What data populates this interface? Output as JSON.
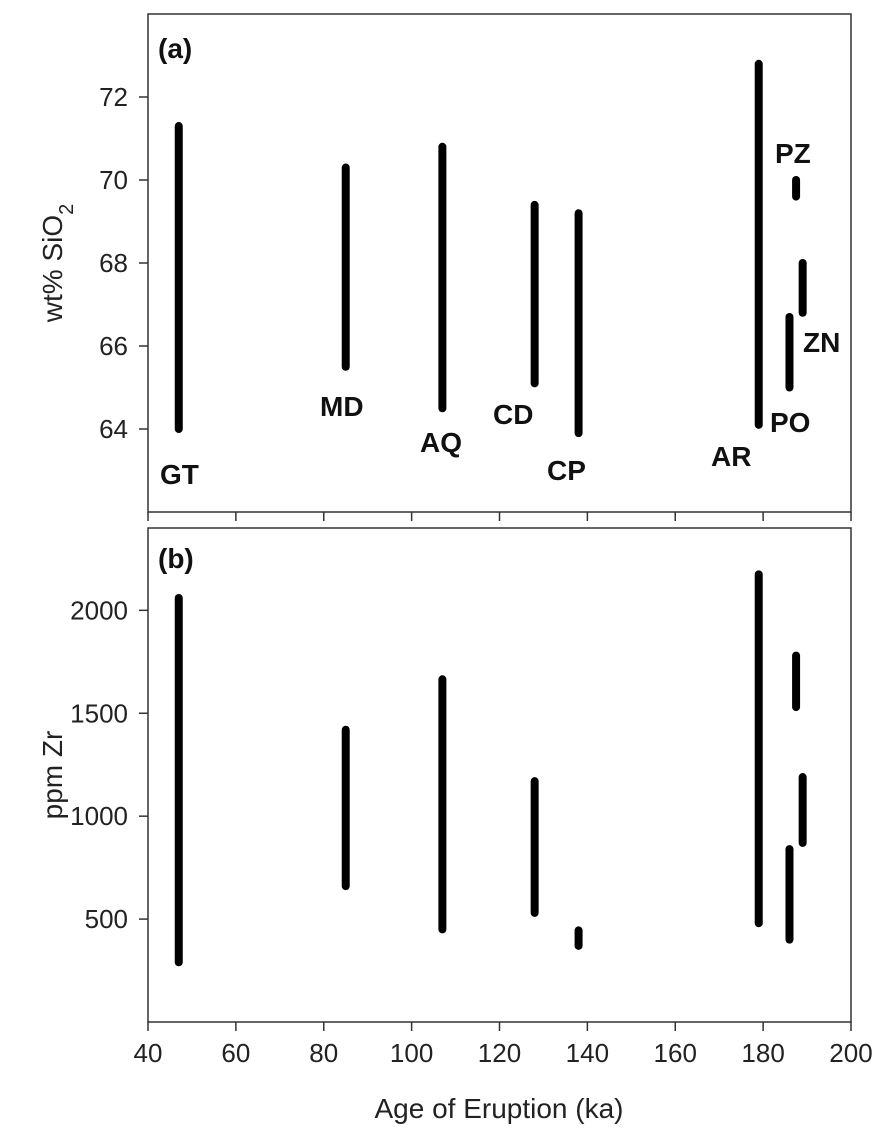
{
  "chart_data": [
    {
      "type": "range",
      "panel_label": "(a)",
      "ylabel": "wt% SiO",
      "ylabel_sub": "2",
      "xlim": [
        40,
        200
      ],
      "ylim": [
        62,
        74
      ],
      "yticks": [
        64,
        66,
        68,
        70,
        72
      ],
      "ranges": [
        {
          "label": "GT",
          "age": 47,
          "min": 64.0,
          "max": 71.3
        },
        {
          "label": "MD",
          "age": 85,
          "min": 65.5,
          "max": 70.3
        },
        {
          "label": "AQ",
          "age": 107,
          "min": 64.5,
          "max": 70.8
        },
        {
          "label": "CD",
          "age": 128,
          "min": 65.1,
          "max": 69.4
        },
        {
          "label": "CP",
          "age": 138,
          "min": 63.9,
          "max": 69.2
        },
        {
          "label": "AR",
          "age": 179,
          "min": 64.1,
          "max": 72.8
        },
        {
          "label": "PZ",
          "age": 187.5,
          "min": 69.6,
          "max": 70.0
        },
        {
          "label": "ZN",
          "age": 189,
          "min": 66.8,
          "max": 68.0
        },
        {
          "label": "PO",
          "age": 186,
          "min": 65.0,
          "max": 66.7
        }
      ]
    },
    {
      "type": "range",
      "panel_label": "(b)",
      "ylabel": "ppm Zr",
      "xlabel": "Age of Eruption (ka)",
      "xlim": [
        40,
        200
      ],
      "xticks": [
        40,
        60,
        80,
        100,
        120,
        140,
        160,
        180,
        200
      ],
      "ylim": [
        0,
        2400
      ],
      "yticks": [
        500,
        1000,
        1500,
        2000
      ],
      "ranges": [
        {
          "label": "GT",
          "age": 47,
          "min": 290,
          "max": 2060
        },
        {
          "label": "MD",
          "age": 85,
          "min": 660,
          "max": 1420
        },
        {
          "label": "AQ",
          "age": 107,
          "min": 450,
          "max": 1665
        },
        {
          "label": "CD",
          "age": 128,
          "min": 530,
          "max": 1170
        },
        {
          "label": "CP",
          "age": 138,
          "min": 370,
          "max": 445
        },
        {
          "label": "AR",
          "age": 179,
          "min": 480,
          "max": 2175
        },
        {
          "label": "PZ",
          "age": 187.5,
          "min": 1530,
          "max": 1780
        },
        {
          "label": "ZN",
          "age": 189,
          "min": 870,
          "max": 1190
        },
        {
          "label": "PO",
          "age": 186,
          "min": 400,
          "max": 840
        }
      ]
    }
  ]
}
